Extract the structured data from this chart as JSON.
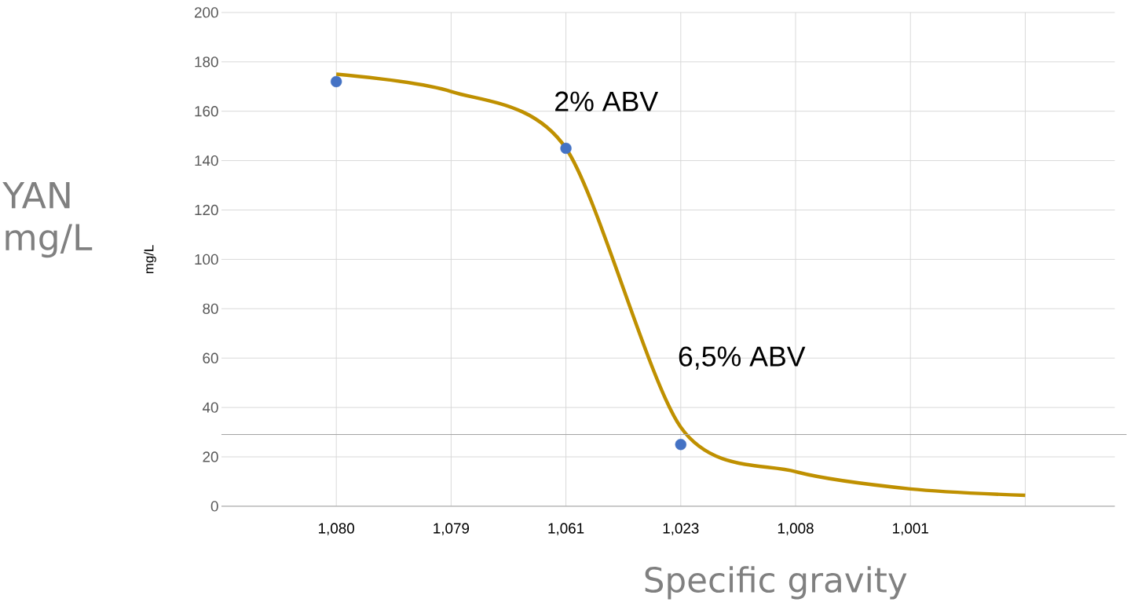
{
  "chart_data": {
    "type": "line",
    "categories": [
      "1,080",
      "1,079",
      "1,061",
      "1,023",
      "1,008",
      "1,001",
      null
    ],
    "series": [
      {
        "color": "#bf9000",
        "marker": "none",
        "values": [
          175,
          168,
          145,
          32,
          14,
          7,
          4.4
        ]
      },
      {
        "type": "scatter",
        "color": "#4472c4",
        "marker": "circle",
        "values": [
          172,
          null,
          145,
          25,
          null,
          null,
          null
        ]
      }
    ],
    "ylim": [
      0,
      200
    ],
    "yticks": [
      0,
      20,
      40,
      60,
      80,
      100,
      120,
      140,
      160,
      180,
      200
    ],
    "ylabel": "mg/L",
    "xlabel": "Specific gravity",
    "grid": true,
    "ref_lines": [
      {
        "axis": "y",
        "value": 29,
        "color": "#a6a6a6"
      }
    ],
    "annotations": [
      "2% ABV",
      "6,5% ABV",
      "YAN mg/L"
    ]
  }
}
